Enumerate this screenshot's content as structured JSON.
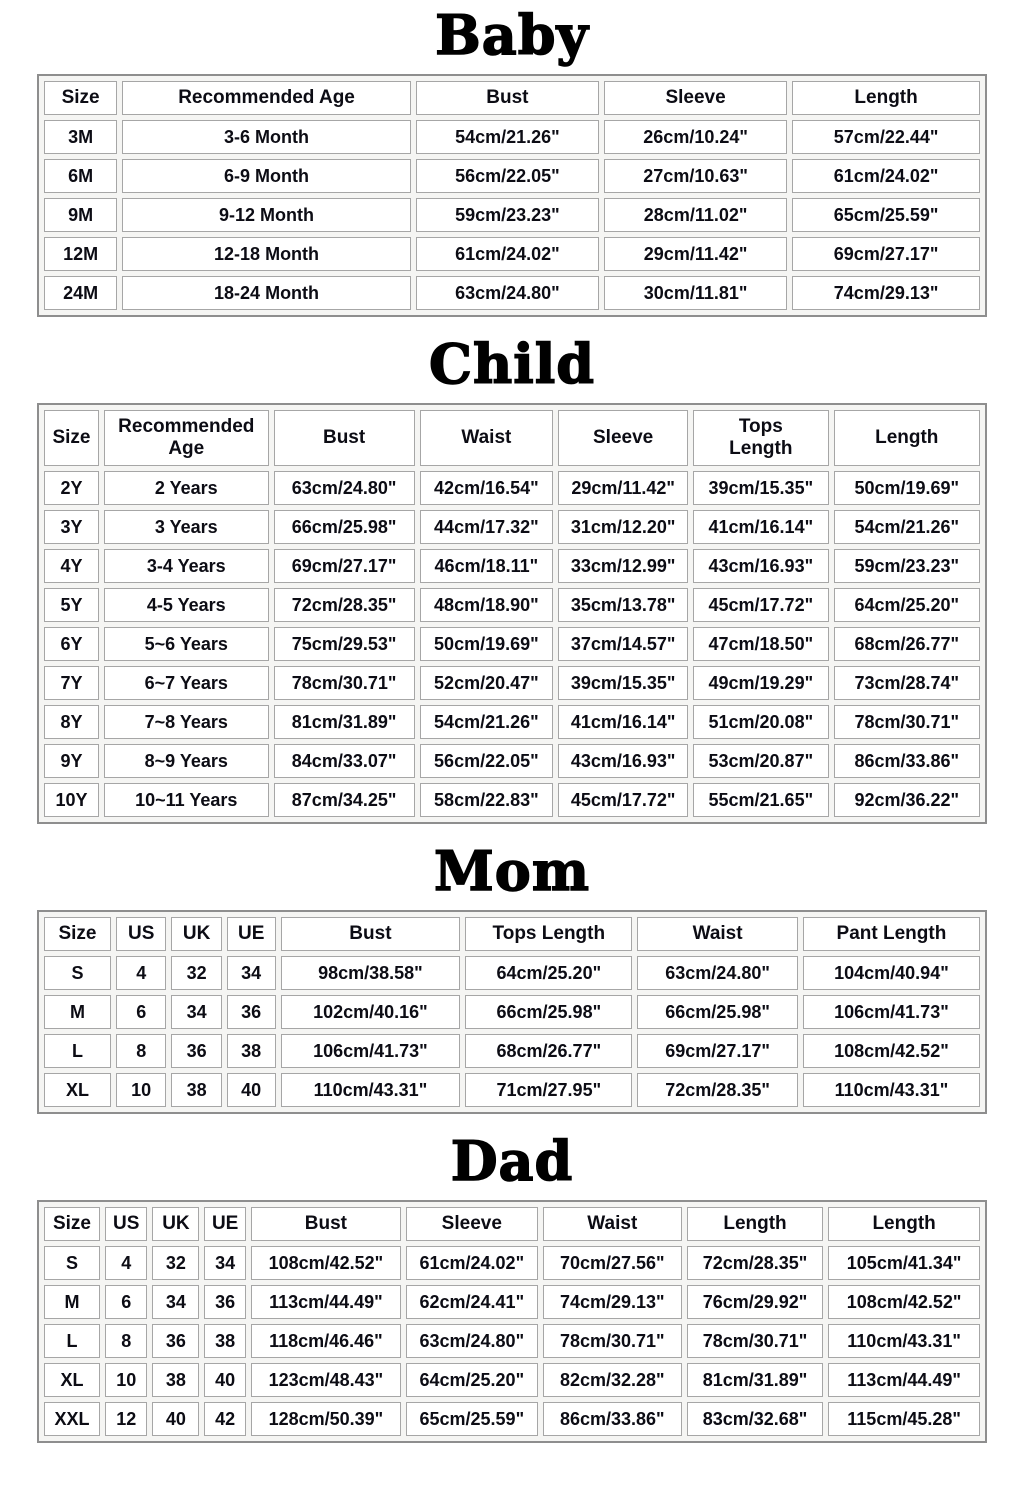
{
  "theme": {
    "background": "#ffffff",
    "text": "#0c0c14",
    "title_color": "#000000",
    "table_outer_border": "#8e8e8e",
    "cell_border": "#a6a6a6",
    "cell_background": "#ffffff",
    "table_gap_background": "#f5f5f3"
  },
  "sections": [
    {
      "title": "Baby",
      "headers": [
        "Size",
        "Recommended Age",
        "Bust",
        "Sleeve",
        "Length"
      ],
      "col_widths": [
        "8%",
        "31.5%",
        "20%",
        "20%",
        "20.5%"
      ],
      "rows": [
        [
          "3M",
          "3-6 Month",
          "54cm/21.26\"",
          "26cm/10.24\"",
          "57cm/22.44\""
        ],
        [
          "6M",
          "6-9 Month",
          "56cm/22.05\"",
          "27cm/10.63\"",
          "61cm/24.02\""
        ],
        [
          "9M",
          "9-12 Month",
          "59cm/23.23\"",
          "28cm/11.02\"",
          "65cm/25.59\""
        ],
        [
          "12M",
          "12-18 Month",
          "61cm/24.02\"",
          "29cm/11.42\"",
          "69cm/27.17\""
        ],
        [
          "24M",
          "18-24 Month",
          "63cm/24.80\"",
          "30cm/11.81\"",
          "74cm/29.13\""
        ]
      ]
    },
    {
      "title": "Child",
      "headers": [
        "Size",
        "Recommended\nAge",
        "Bust",
        "Waist",
        "Sleeve",
        "Tops\nLength",
        "Length"
      ],
      "col_widths": [
        "6%",
        "18%",
        "15.4%",
        "14.6%",
        "14.2%",
        "14.8%",
        "16%"
      ],
      "rows": [
        [
          "2Y",
          "2 Years",
          "63cm/24.80\"",
          "42cm/16.54\"",
          "29cm/11.42\"",
          "39cm/15.35\"",
          "50cm/19.69\""
        ],
        [
          "3Y",
          "3 Years",
          "66cm/25.98\"",
          "44cm/17.32\"",
          "31cm/12.20\"",
          "41cm/16.14\"",
          "54cm/21.26\""
        ],
        [
          "4Y",
          "3-4 Years",
          "69cm/27.17\"",
          "46cm/18.11\"",
          "33cm/12.99\"",
          "43cm/16.93\"",
          "59cm/23.23\""
        ],
        [
          "5Y",
          "4-5 Years",
          "72cm/28.35\"",
          "48cm/18.90\"",
          "35cm/13.78\"",
          "45cm/17.72\"",
          "64cm/25.20\""
        ],
        [
          "6Y",
          "5~6 Years",
          "75cm/29.53\"",
          "50cm/19.69\"",
          "37cm/14.57\"",
          "47cm/18.50\"",
          "68cm/26.77\""
        ],
        [
          "7Y",
          "6~7 Years",
          "78cm/30.71\"",
          "52cm/20.47\"",
          "39cm/15.35\"",
          "49cm/19.29\"",
          "73cm/28.74\""
        ],
        [
          "8Y",
          "7~8 Years",
          "81cm/31.89\"",
          "54cm/21.26\"",
          "41cm/16.14\"",
          "51cm/20.08\"",
          "78cm/30.71\""
        ],
        [
          "9Y",
          "8~9 Years",
          "84cm/33.07\"",
          "56cm/22.05\"",
          "43cm/16.93\"",
          "53cm/20.87\"",
          "86cm/33.86\""
        ],
        [
          "10Y",
          "10~11 Years",
          "87cm/34.25\"",
          "58cm/22.83\"",
          "45cm/17.72\"",
          "55cm/21.65\"",
          "92cm/36.22\""
        ]
      ]
    },
    {
      "title": "Mom",
      "headers": [
        "Size",
        "US",
        "UK",
        "UE",
        "Bust",
        "Tops Length",
        "Waist",
        "Pant Length"
      ],
      "col_widths": [
        "7.3%",
        "5.5%",
        "5.5%",
        "5.3%",
        "19.6%",
        "18.2%",
        "17.5%",
        "19.3%"
      ],
      "rows": [
        [
          "S",
          "4",
          "32",
          "34",
          "98cm/38.58\"",
          "64cm/25.20\"",
          "63cm/24.80\"",
          "104cm/40.94\""
        ],
        [
          "M",
          "6",
          "34",
          "36",
          "102cm/40.16\"",
          "66cm/25.98\"",
          "66cm/25.98\"",
          "106cm/41.73\""
        ],
        [
          "L",
          "8",
          "36",
          "38",
          "106cm/41.73\"",
          "68cm/26.77\"",
          "69cm/27.17\"",
          "108cm/42.52\""
        ],
        [
          "XL",
          "10",
          "38",
          "40",
          "110cm/43.31\"",
          "71cm/27.95\"",
          "72cm/28.35\"",
          "110cm/43.31\""
        ]
      ]
    },
    {
      "title": "Dad",
      "headers": [
        "Size",
        "US",
        "UK",
        "UE",
        "Bust",
        "Sleeve",
        "Waist",
        "Length",
        "Length"
      ],
      "col_widths": [
        "6.2%",
        "4.7%",
        "5.2%",
        "4.6%",
        "16.6%",
        "14.6%",
        "15.4%",
        "15.1%",
        "16.8%"
      ],
      "rows": [
        [
          "S",
          "4",
          "32",
          "34",
          "108cm/42.52\"",
          "61cm/24.02\"",
          "70cm/27.56\"",
          "72cm/28.35\"",
          "105cm/41.34\""
        ],
        [
          "M",
          "6",
          "34",
          "36",
          "113cm/44.49\"",
          "62cm/24.41\"",
          "74cm/29.13\"",
          "76cm/29.92\"",
          "108cm/42.52\""
        ],
        [
          "L",
          "8",
          "36",
          "38",
          "118cm/46.46\"",
          "63cm/24.80\"",
          "78cm/30.71\"",
          "78cm/30.71\"",
          "110cm/43.31\""
        ],
        [
          "XL",
          "10",
          "38",
          "40",
          "123cm/48.43\"",
          "64cm/25.20\"",
          "82cm/32.28\"",
          "81cm/31.89\"",
          "113cm/44.49\""
        ],
        [
          "XXL",
          "12",
          "40",
          "42",
          "128cm/50.39\"",
          "65cm/25.59\"",
          "86cm/33.86\"",
          "83cm/32.68\"",
          "115cm/45.28\""
        ]
      ]
    }
  ]
}
